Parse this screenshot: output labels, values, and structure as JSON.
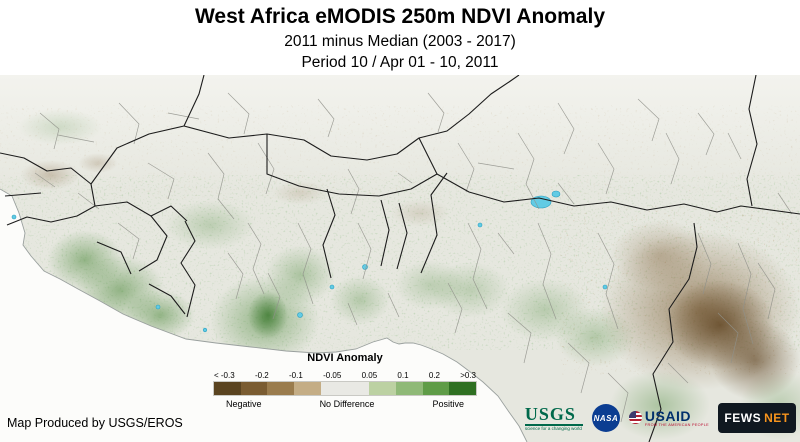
{
  "header": {
    "title": "West Africa eMODIS 250m NDVI Anomaly",
    "subtitle1": "2011 minus Median (2003 - 2017)",
    "subtitle2": "Period 10 / Apr 01 - 10, 2011"
  },
  "legend": {
    "title": "NDVI Anomaly",
    "tick_labels": [
      "< -0.3",
      "-0.2",
      "-0.1",
      "-0.05",
      "0.05",
      "0.1",
      "0.2",
      ">0.3"
    ],
    "colors": [
      "#5a4420",
      "#7a5c31",
      "#9a7c4d",
      "#c4ad85",
      "#e9e9e4",
      "#bcd1a2",
      "#8fb977",
      "#5f9c47",
      "#2f7022"
    ],
    "categories": [
      "Negative",
      "No Difference",
      "Positive"
    ]
  },
  "footer": {
    "credit": "Map Produced by USGS/EROS"
  },
  "logos": {
    "usgs": {
      "name": "USGS",
      "tagline": "science for a changing world",
      "color": "#00694b"
    },
    "nasa": {
      "name": "NASA",
      "color": "#0b3d91"
    },
    "usaid": {
      "name": "USAID",
      "tagline": "FROM THE AMERICAN PEOPLE",
      "color": "#002f6c"
    },
    "fewsnet": {
      "part1": "FEWS",
      "part2": "NET",
      "bg": "#101820",
      "accent": "#f7941d"
    }
  },
  "map": {
    "palette": {
      "land": "#e6e7df",
      "sahara": "#f3f3ee",
      "ocean": "#fcfcfa",
      "vegetation_green": "#4e8a3c",
      "deficit_brown": "#7a5a30",
      "water_blue": "#62cbe4",
      "country_border": "#1c1c1c",
      "admin_border": "#90918a"
    }
  }
}
